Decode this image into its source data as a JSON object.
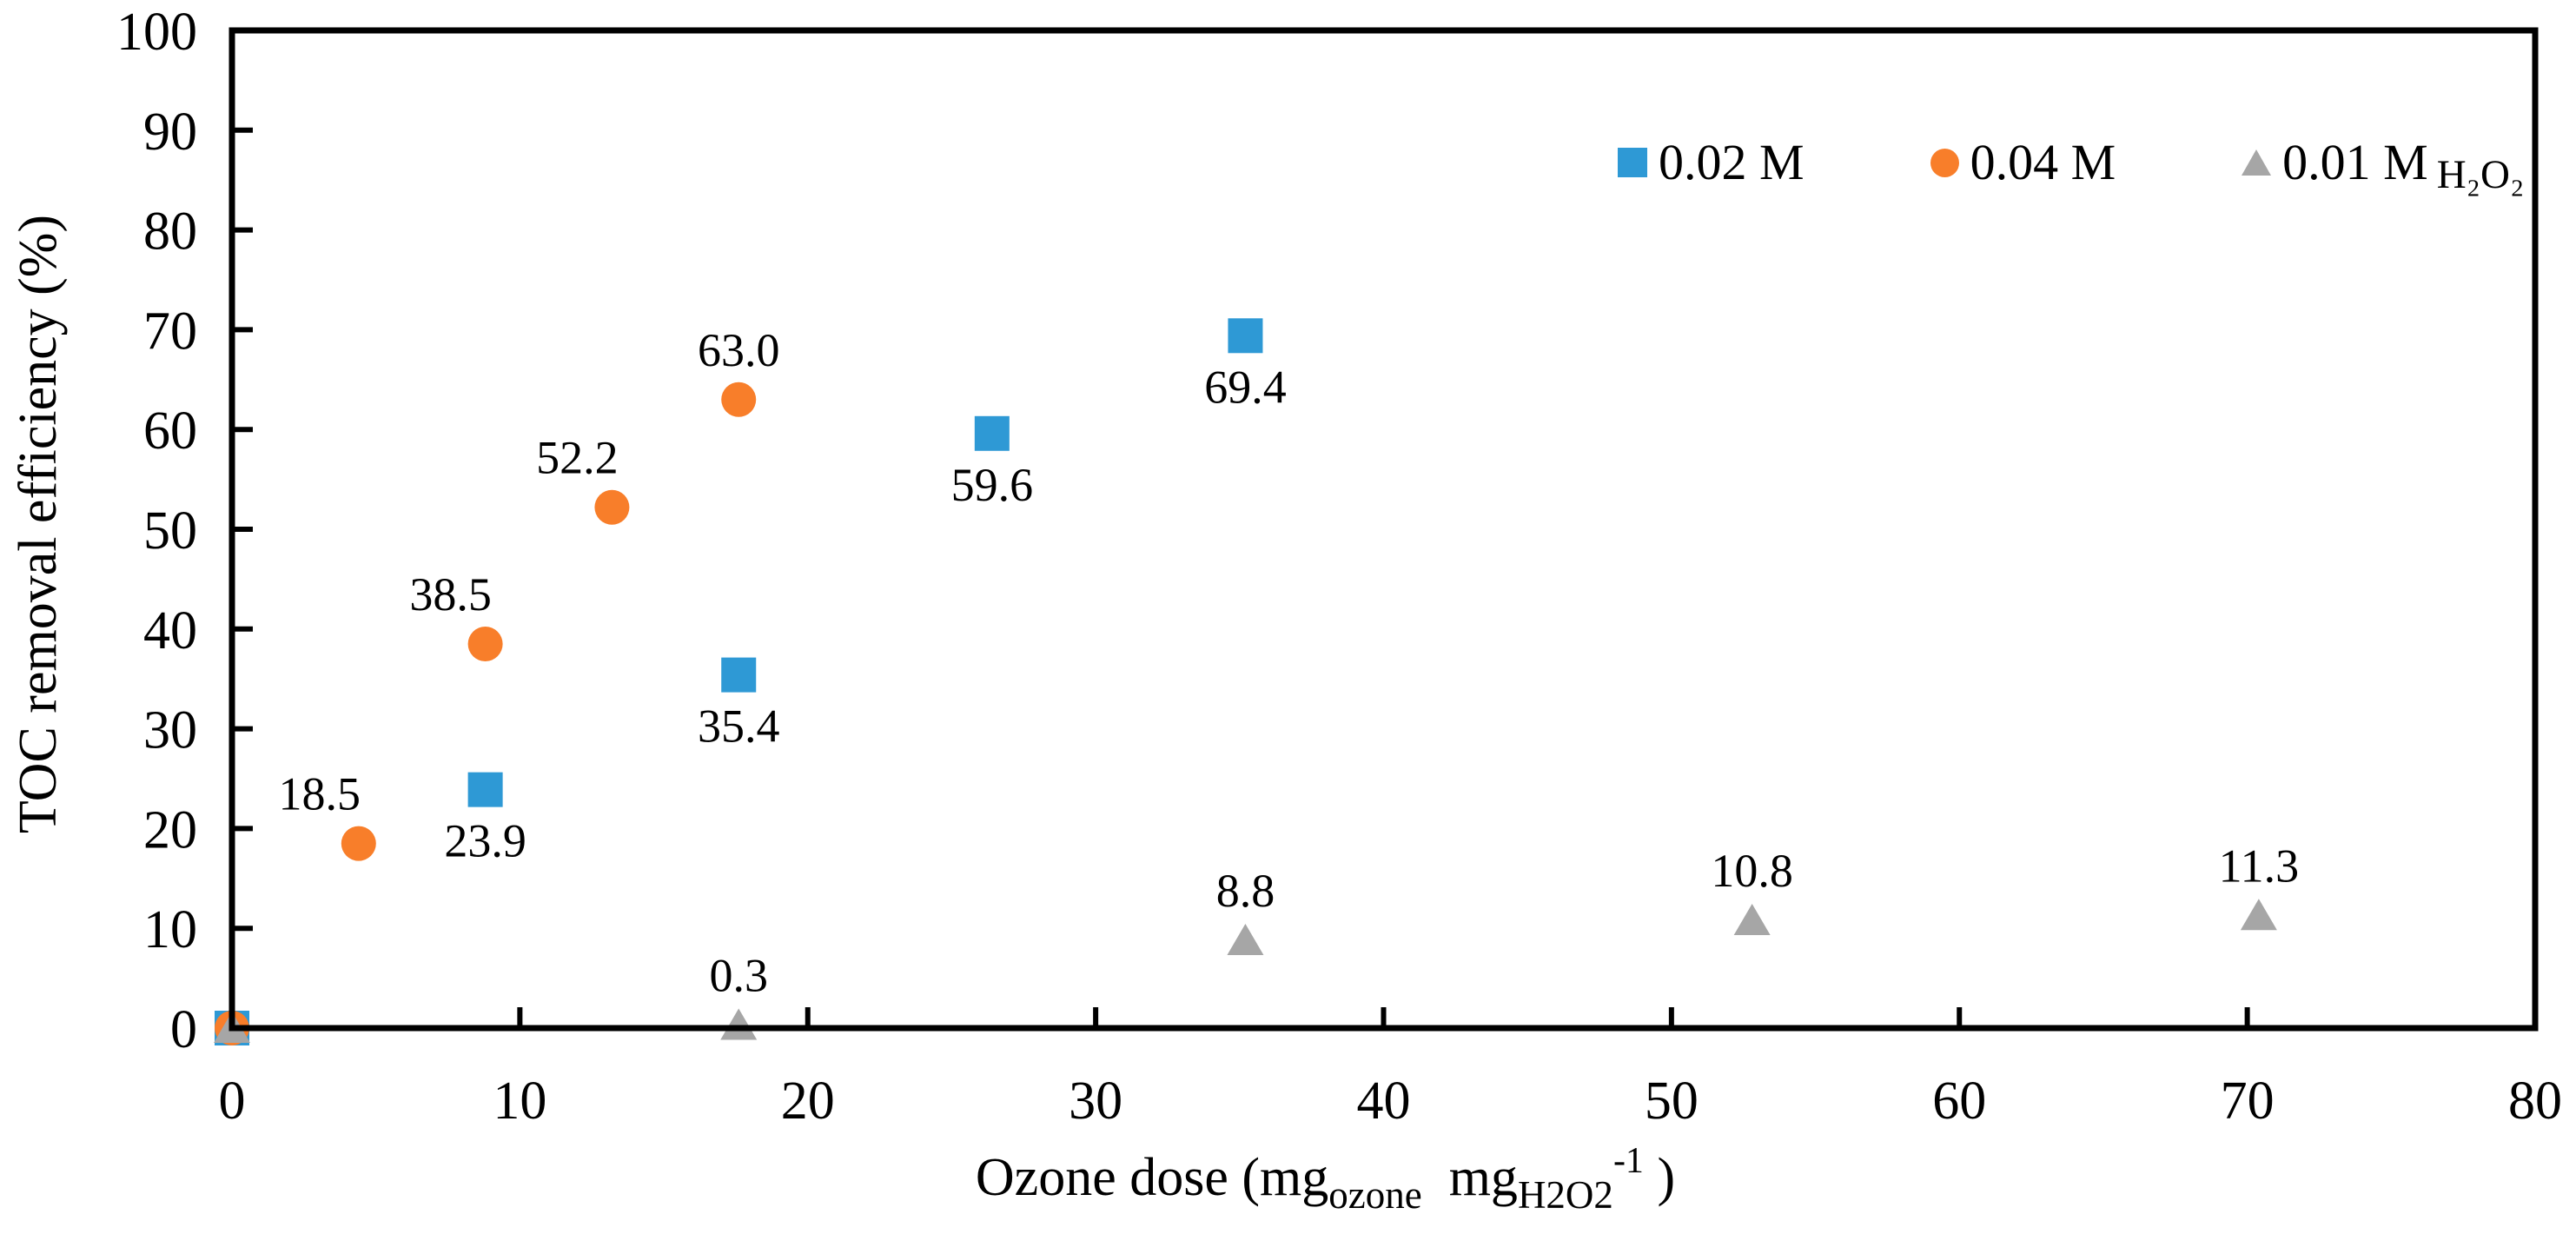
{
  "chart_data": {
    "type": "scatter",
    "title": "",
    "ylabel": "TOC removal efficiency (%)",
    "xlabel_parts": {
      "prefix": "Ozone dose (mg",
      "sub1": "ozone",
      "mid": "  mg",
      "sub2": "H2O2",
      "sup": "-1",
      "suffix": " )"
    },
    "xlim": [
      0,
      80
    ],
    "ylim": [
      0,
      100
    ],
    "xticks": [
      0,
      10,
      20,
      30,
      40,
      50,
      60,
      70,
      80
    ],
    "yticks": [
      0,
      10,
      20,
      30,
      40,
      50,
      60,
      70,
      80,
      90,
      100
    ],
    "grid": false,
    "legend_position": "top-right-inside",
    "background": "#FFFFFF",
    "frame_color": "#000000",
    "series": [
      {
        "name": "0.02 M",
        "marker": "square",
        "color": "#2E99D5",
        "label_side": "below",
        "points": [
          {
            "x": 0,
            "y": 0,
            "label": ""
          },
          {
            "x": 8.8,
            "y": 23.9,
            "label": "23.9"
          },
          {
            "x": 17.6,
            "y": 35.4,
            "label": "35.4"
          },
          {
            "x": 26.4,
            "y": 59.6,
            "label": "59.6"
          },
          {
            "x": 35.2,
            "y": 69.4,
            "label": "69.4"
          }
        ]
      },
      {
        "name": "0.04 M",
        "marker": "circle",
        "color": "#F87E2A",
        "label_side": "above",
        "points": [
          {
            "x": 0,
            "y": 0,
            "label": ""
          },
          {
            "x": 4.4,
            "y": 18.5,
            "label": "18.5",
            "dx": -45
          },
          {
            "x": 8.8,
            "y": 38.5,
            "label": "38.5",
            "dx": -40
          },
          {
            "x": 13.2,
            "y": 52.2,
            "label": "52.2",
            "dx": -40
          },
          {
            "x": 17.6,
            "y": 63.0,
            "label": "63.0"
          }
        ]
      },
      {
        "name": "0.01 M",
        "name_suffix": "H₂O₂",
        "marker": "triangle",
        "color": "#A6A6A6",
        "label_side": "above",
        "points": [
          {
            "x": 0,
            "y": 0,
            "label": ""
          },
          {
            "x": 17.6,
            "y": 0.3,
            "label": "0.3"
          },
          {
            "x": 35.2,
            "y": 8.8,
            "label": "8.8"
          },
          {
            "x": 52.8,
            "y": 10.8,
            "label": "10.8"
          },
          {
            "x": 70.4,
            "y": 11.3,
            "label": "11.3"
          }
        ]
      }
    ]
  }
}
